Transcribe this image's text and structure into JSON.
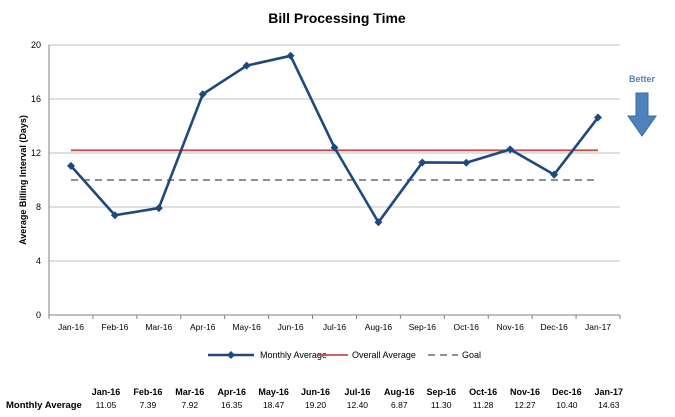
{
  "chart_data": {
    "type": "line",
    "title": "Bill Processing Time",
    "ylabel": "Average Billing Interval (Days)",
    "xlabel": "",
    "ylim": [
      0,
      20
    ],
    "yticks": [
      0,
      4,
      8,
      12,
      16,
      20
    ],
    "grid": true,
    "categories": [
      "Jan-16",
      "Feb-16",
      "Mar-16",
      "Apr-16",
      "May-16",
      "Jun-16",
      "Jul-16",
      "Aug-16",
      "Sep-16",
      "Oct-16",
      "Nov-16",
      "Dec-16",
      "Jan-17"
    ],
    "series": [
      {
        "name": "Monthly Average",
        "color": "#1f497d",
        "marker": "diamond",
        "values": [
          11.05,
          7.39,
          7.92,
          16.35,
          18.47,
          19.2,
          12.4,
          6.87,
          11.3,
          11.28,
          12.27,
          10.4,
          14.63
        ]
      },
      {
        "name": "Overall Average",
        "color": "#c0504d",
        "style": "solid",
        "value": 12.2
      },
      {
        "name": "Goal",
        "color": "#808080",
        "style": "dashed",
        "value": 10
      }
    ],
    "legend_position": "bottom",
    "annotation": {
      "text": "Better",
      "direction": "down",
      "color": "#4f81bd"
    },
    "table": {
      "row_label": "Monthly Average",
      "values": [
        "11.05",
        "7.39",
        "7.92",
        "16.35",
        "18.47",
        "19.20",
        "12.40",
        "6.87",
        "11.30",
        "11.28",
        "12.27",
        "10.40",
        "14.63"
      ]
    }
  }
}
